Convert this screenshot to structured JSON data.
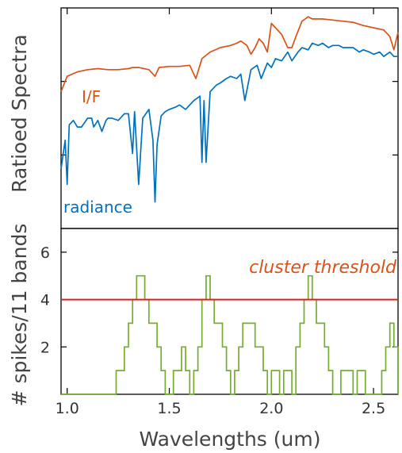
{
  "colors": {
    "if_series": "#D95319",
    "radiance_series": "#0072BD",
    "spike_count": "#77AC30",
    "threshold_line": "#E02020",
    "threshold_label": "#D95319"
  },
  "chart_data": [
    {
      "type": "line",
      "panel": "top",
      "title": "",
      "xlabel": "",
      "ylabel": "Ratioed Spectra",
      "xlim": [
        0.97,
        2.62
      ],
      "ylim": [
        0,
        1
      ],
      "yticks_labeled": false,
      "grid": false,
      "legend": "inline text labels",
      "series": [
        {
          "name": "I/F",
          "color": "#D95319",
          "x": [
            0.97,
            1.0,
            1.05,
            1.1,
            1.15,
            1.2,
            1.25,
            1.3,
            1.32,
            1.35,
            1.4,
            1.43,
            1.45,
            1.5,
            1.55,
            1.6,
            1.63,
            1.64,
            1.66,
            1.7,
            1.75,
            1.8,
            1.83,
            1.85,
            1.88,
            1.9,
            1.92,
            1.94,
            1.96,
            1.98,
            2.0,
            2.02,
            2.05,
            2.08,
            2.1,
            2.12,
            2.15,
            2.18,
            2.2,
            2.25,
            2.3,
            2.35,
            2.4,
            2.45,
            2.5,
            2.55,
            2.58,
            2.6,
            2.62
          ],
          "y": [
            0.62,
            0.69,
            0.71,
            0.72,
            0.725,
            0.72,
            0.72,
            0.725,
            0.73,
            0.73,
            0.72,
            0.69,
            0.73,
            0.735,
            0.735,
            0.74,
            0.68,
            0.71,
            0.77,
            0.8,
            0.82,
            0.83,
            0.84,
            0.85,
            0.83,
            0.79,
            0.82,
            0.86,
            0.84,
            0.8,
            0.93,
            0.91,
            0.88,
            0.82,
            0.82,
            0.87,
            0.94,
            0.96,
            0.95,
            0.95,
            0.945,
            0.94,
            0.935,
            0.92,
            0.91,
            0.9,
            0.87,
            0.81,
            0.89
          ]
        },
        {
          "name": "radiance",
          "color": "#0072BD",
          "x": [
            0.97,
            0.99,
            1.0,
            1.01,
            1.03,
            1.05,
            1.07,
            1.1,
            1.12,
            1.13,
            1.15,
            1.17,
            1.19,
            1.2,
            1.22,
            1.25,
            1.28,
            1.3,
            1.32,
            1.33,
            1.35,
            1.37,
            1.4,
            1.42,
            1.43,
            1.44,
            1.46,
            1.48,
            1.5,
            1.53,
            1.55,
            1.58,
            1.6,
            1.62,
            1.65,
            1.66,
            1.67,
            1.68,
            1.7,
            1.73,
            1.75,
            1.78,
            1.8,
            1.83,
            1.85,
            1.87,
            1.9,
            1.93,
            1.95,
            1.98,
            2.0,
            2.02,
            2.05,
            2.08,
            2.1,
            2.13,
            2.15,
            2.18,
            2.2,
            2.23,
            2.25,
            2.28,
            2.3,
            2.33,
            2.35,
            2.38,
            2.4,
            2.43,
            2.45,
            2.48,
            2.5,
            2.53,
            2.55,
            2.58,
            2.6,
            2.62
          ],
          "y": [
            0.27,
            0.4,
            0.2,
            0.47,
            0.49,
            0.46,
            0.46,
            0.5,
            0.5,
            0.46,
            0.49,
            0.44,
            0.49,
            0.5,
            0.5,
            0.49,
            0.52,
            0.52,
            0.34,
            0.53,
            0.2,
            0.5,
            0.54,
            0.4,
            0.12,
            0.38,
            0.51,
            0.53,
            0.54,
            0.55,
            0.56,
            0.54,
            0.56,
            0.58,
            0.6,
            0.3,
            0.58,
            0.3,
            0.62,
            0.65,
            0.66,
            0.68,
            0.69,
            0.68,
            0.7,
            0.58,
            0.72,
            0.74,
            0.68,
            0.75,
            0.73,
            0.77,
            0.76,
            0.8,
            0.76,
            0.8,
            0.82,
            0.81,
            0.84,
            0.83,
            0.84,
            0.82,
            0.83,
            0.83,
            0.82,
            0.82,
            0.82,
            0.8,
            0.81,
            0.8,
            0.79,
            0.8,
            0.78,
            0.8,
            0.78,
            0.78
          ]
        }
      ],
      "annotations": [
        "I/F",
        "radiance"
      ]
    },
    {
      "type": "line",
      "panel": "bottom",
      "title": "",
      "xlabel": "Wavelengths (um)",
      "ylabel": "# spikes/11 bands",
      "xlim": [
        0.97,
        2.62
      ],
      "ylim": [
        0,
        7
      ],
      "xticks": [
        1.0,
        1.5,
        2.0,
        2.5
      ],
      "xticklabels": [
        "1.0",
        "1.5",
        "2.0",
        "2.5"
      ],
      "yticks": [
        2,
        4,
        6
      ],
      "yticklabels": [
        "2",
        "4",
        "6"
      ],
      "grid": false,
      "series": [
        {
          "name": "",
          "color": "#77AC30",
          "x": [
            0.97,
            1.2,
            1.22,
            1.24,
            1.26,
            1.28,
            1.3,
            1.32,
            1.34,
            1.36,
            1.38,
            1.4,
            1.42,
            1.44,
            1.46,
            1.48,
            1.5,
            1.52,
            1.54,
            1.56,
            1.58,
            1.6,
            1.62,
            1.64,
            1.66,
            1.68,
            1.7,
            1.72,
            1.74,
            1.76,
            1.78,
            1.8,
            1.82,
            1.84,
            1.86,
            1.88,
            1.9,
            1.92,
            1.94,
            1.96,
            1.98,
            2.0,
            2.02,
            2.04,
            2.06,
            2.08,
            2.1,
            2.12,
            2.14,
            2.16,
            2.18,
            2.2,
            2.22,
            2.24,
            2.26,
            2.28,
            2.3,
            2.32,
            2.34,
            2.36,
            2.38,
            2.4,
            2.42,
            2.44,
            2.46,
            2.48,
            2.5,
            2.52,
            2.54,
            2.56,
            2.58,
            2.6,
            2.62
          ],
          "y": [
            0,
            0,
            0,
            1,
            1,
            2,
            3,
            4,
            5,
            5,
            4,
            3,
            3,
            2,
            1,
            0,
            0,
            1,
            1,
            2,
            1,
            0,
            1,
            2,
            4,
            5,
            4,
            3,
            3,
            2,
            1,
            0,
            1,
            2,
            3,
            3,
            3,
            2,
            2,
            1,
            0,
            1,
            1,
            0,
            1,
            1,
            0,
            2,
            3,
            4,
            5,
            4,
            3,
            3,
            2,
            1,
            0,
            0,
            1,
            1,
            1,
            0,
            1,
            1,
            0,
            0,
            0,
            0,
            1,
            2,
            3,
            2,
            0
          ]
        },
        {
          "name": "cluster threshold",
          "color": "#E02020",
          "x": [
            0.97,
            2.62
          ],
          "y": [
            4,
            4
          ]
        }
      ],
      "annotations": [
        "cluster threshold"
      ]
    }
  ]
}
